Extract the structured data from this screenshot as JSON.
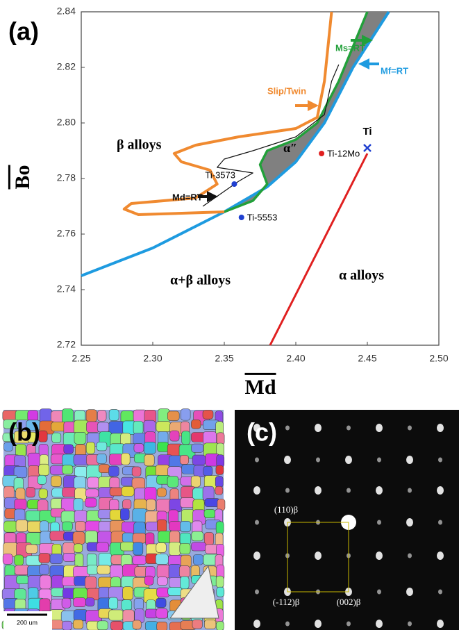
{
  "chart_data": {
    "type": "line",
    "panel_label": "(a)",
    "x_label": "Md",
    "y_label": "Bo",
    "xlim": [
      2.25,
      2.5
    ],
    "ylim": [
      2.72,
      2.84
    ],
    "xticks": [
      2.25,
      {
        "value": 2.3,
        "label": "2.30"
      },
      2.35,
      {
        "value": 2.4,
        "label": "2.40"
      },
      2.45,
      {
        "value": 2.5,
        "label": "2.50"
      }
    ],
    "yticks": [
      2.72,
      2.74,
      2.76,
      2.78,
      {
        "value": 2.8,
        "label": "2.80"
      },
      2.82,
      2.84
    ],
    "series": [
      {
        "name": "Mf=RT",
        "color": "#1e9be0",
        "x": [
          2.25,
          2.3,
          2.35,
          2.38,
          2.4,
          2.42,
          2.44,
          2.465
        ],
        "y": [
          2.745,
          2.755,
          2.768,
          2.777,
          2.786,
          2.8,
          2.82,
          2.84
        ]
      },
      {
        "name": "Ms=RT",
        "color": "#22a03a",
        "x": [
          2.35,
          2.37,
          2.38,
          2.375,
          2.38,
          2.4,
          2.415,
          2.43,
          2.45
        ],
        "y": [
          2.768,
          2.772,
          2.778,
          2.785,
          2.79,
          2.794,
          2.8,
          2.815,
          2.84
        ]
      },
      {
        "name": "Slip/Twin",
        "color": "#f08a30",
        "x": [
          2.35,
          2.29,
          2.28,
          2.285,
          2.33,
          2.345,
          2.34,
          2.32,
          2.315,
          2.33,
          2.36,
          2.4,
          2.415,
          2.42,
          2.425
        ],
        "y": [
          2.768,
          2.767,
          2.769,
          2.771,
          2.773,
          2.778,
          2.783,
          2.786,
          2.789,
          2.792,
          2.795,
          2.798,
          2.802,
          2.815,
          2.84
        ]
      },
      {
        "name": "Md=RT",
        "color": "#111111",
        "x": [
          2.335,
          2.36,
          2.37,
          2.345,
          2.35,
          2.37,
          2.4,
          2.42,
          2.425,
          2.43
        ],
        "y": [
          2.77,
          2.779,
          2.782,
          2.784,
          2.787,
          2.79,
          2.795,
          2.803,
          2.815,
          2.821
        ]
      },
      {
        "color": "#e02020",
        "x": [
          2.382,
          2.45
        ],
        "y": [
          2.72,
          2.789
        ]
      }
    ],
    "points": {
      "labels": [
        "Ti-12Mo",
        "Ti-3573",
        "Ti-5553",
        "Ti"
      ],
      "x": [
        2.418,
        2.357,
        2.362,
        2.45
      ],
      "y": [
        2.789,
        2.778,
        2.766,
        2.791
      ],
      "colors": [
        "#e02020",
        "#2040d0",
        "#2040d0",
        "#2040d0"
      ],
      "markers": [
        "circle",
        "circle",
        "circle",
        "x"
      ]
    },
    "annotations": [
      "β alloys",
      "α+β alloys",
      "α alloys",
      "α″"
    ]
  },
  "panel_b": {
    "label": "(b)",
    "scale_bar": "200 um"
  },
  "panel_c": {
    "label": "(c)",
    "spots": [
      "(110)β",
      "(-112)β",
      "(002)β"
    ]
  }
}
